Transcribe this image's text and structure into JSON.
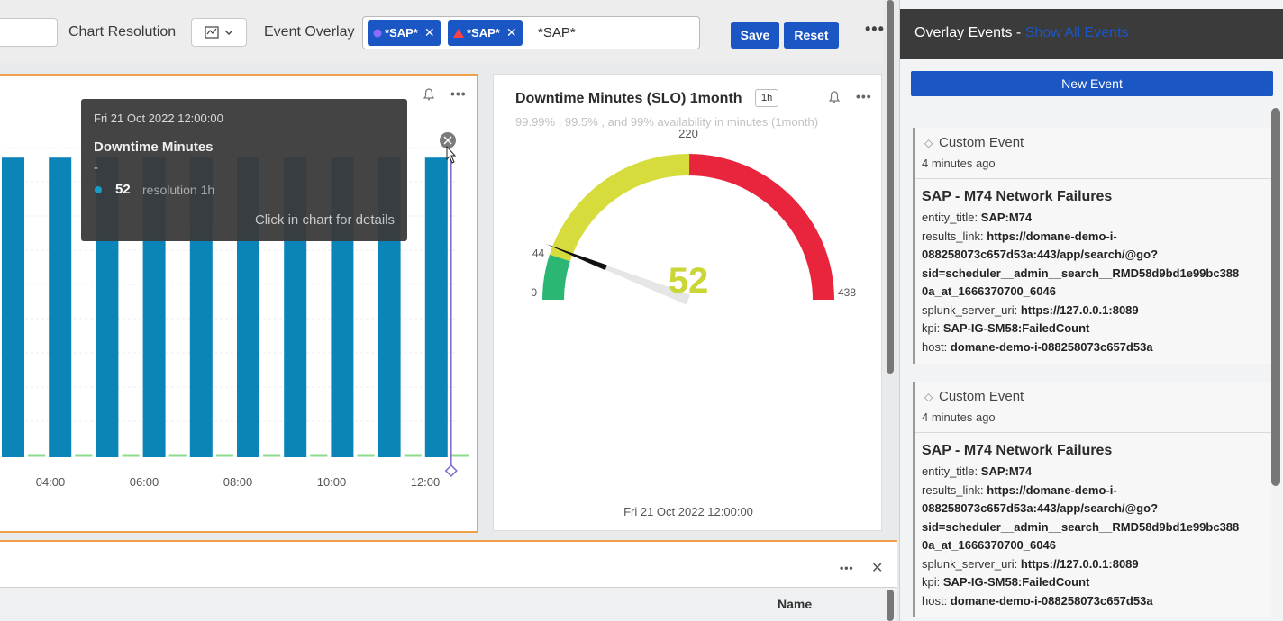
{
  "toolbar": {
    "chart_resolution_label": "Chart Resolution",
    "event_overlay_label": "Event Overlay",
    "chips": [
      {
        "label": "*SAP*",
        "icon": "circle-icon",
        "color": "#8a6cff"
      },
      {
        "label": "*SAP*",
        "icon": "warning-icon",
        "color": "#ff4040"
      }
    ],
    "overlay_input_text": "*SAP*",
    "save_label": "Save",
    "reset_label": "Reset",
    "more_label": "•••"
  },
  "tooltip": {
    "time": "Fri 21 Oct 2022 12:00:00",
    "metric": "Downtime Minutes",
    "dash": "-",
    "value": "52",
    "resolution": "resolution 1h",
    "click_hint": "Click in chart for details"
  },
  "chart_data": {
    "type": "bar",
    "x_tick_labels": [
      "04:00",
      "06:00",
      "08:00",
      "10:00",
      "12:00"
    ],
    "series": [
      {
        "name": "Downtime Minutes",
        "color": "#0b84b8",
        "values": [
          52,
          52,
          52,
          52,
          52,
          52,
          52,
          52,
          52,
          52
        ]
      }
    ],
    "ylim": [
      0,
      60
    ],
    "grid": true
  },
  "gauge": {
    "title": "Downtime Minutes (SLO) 1month",
    "badge": "1h",
    "subtitle": "99.99% , 99.5% , and 99% availability in minutes (1month)",
    "value": "52",
    "value_num": 52,
    "min_label": "0",
    "mid_label": "220",
    "max_label": "438",
    "marker_label": "44",
    "min": 0,
    "max": 438,
    "bands": [
      {
        "from": 0,
        "to": 44,
        "color": "#2bb673"
      },
      {
        "from": 44,
        "to": 220,
        "color": "#d5dc3b"
      },
      {
        "from": 220,
        "to": 438,
        "color": "#e8253d"
      }
    ],
    "date": "Fri 21 Oct 2022 12:00:00"
  },
  "bottom": {
    "name_column": "Name",
    "more_label": "•••",
    "close_label": "✕"
  },
  "sidebar": {
    "title": "Overlay Events -",
    "link": "Show All Events",
    "new_event_label": "New Event",
    "events": [
      {
        "type": "Custom Event",
        "time": "4 minutes ago",
        "title": "SAP - M74 Network Failures",
        "fields": [
          {
            "k": "entity_title:",
            "v": "SAP:M74"
          },
          {
            "k": "results_link:",
            "v": "https://domane-demo-i-"
          },
          {
            "k": "",
            "v": "088258073c657d53a:443/app/search/@go?"
          },
          {
            "k": "",
            "v": "sid=scheduler__admin__search__RMD58d9bd1e99bc388"
          },
          {
            "k": "",
            "v": "0a_at_1666370700_6046"
          },
          {
            "k": "splunk_server_uri:",
            "v": "https://127.0.0.1:8089"
          },
          {
            "k": "kpi:",
            "v": "SAP-IG-SM58:FailedCount"
          },
          {
            "k": "host:",
            "v": "domane-demo-i-088258073c657d53a"
          }
        ]
      },
      {
        "type": "Custom Event",
        "time": "4 minutes ago",
        "title": "SAP - M74 Network Failures",
        "fields": [
          {
            "k": "entity_title:",
            "v": "SAP:M74"
          },
          {
            "k": "results_link:",
            "v": "https://domane-demo-i-"
          },
          {
            "k": "",
            "v": "088258073c657d53a:443/app/search/@go?"
          },
          {
            "k": "",
            "v": "sid=scheduler__admin__search__RMD58d9bd1e99bc388"
          },
          {
            "k": "",
            "v": "0a_at_1666370700_6046"
          },
          {
            "k": "splunk_server_uri:",
            "v": "https://127.0.0.1:8089"
          },
          {
            "k": "kpi:",
            "v": "SAP-IG-SM58:FailedCount"
          },
          {
            "k": "host:",
            "v": "domane-demo-i-088258073c657d53a"
          }
        ]
      }
    ]
  }
}
